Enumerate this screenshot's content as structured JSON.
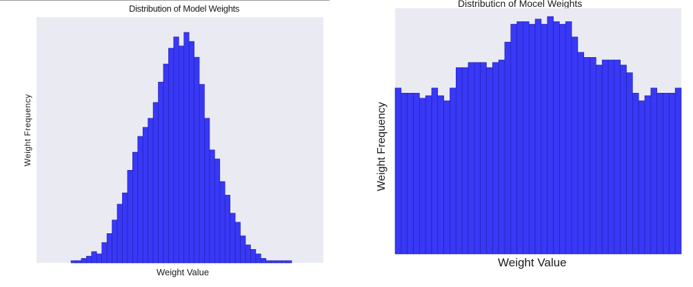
{
  "colors": {
    "bar_fill": "#3838f5",
    "bar_edge": "#1f1fb0",
    "plot_background": "#eaeaf2",
    "page_background": "#ffffff"
  },
  "chart_data": [
    {
      "type": "bar",
      "title": "Distribution of Model Weights",
      "xlabel": "Weight Value",
      "ylabel": "Weight Frequency",
      "grid": false,
      "legend": "none",
      "ticks_shown": false,
      "note": "relative bar heights (0-100) read from image; axes carry no tick labels",
      "values": [
        1,
        1,
        2,
        3,
        5,
        4,
        9,
        13,
        19,
        26,
        31,
        41,
        49,
        56,
        60,
        64,
        71,
        80,
        88,
        95,
        100,
        96,
        102,
        98,
        91,
        79,
        64,
        50,
        46,
        36,
        30,
        22,
        18,
        12,
        8,
        6,
        4,
        2,
        1,
        1,
        1,
        1,
        1
      ]
    },
    {
      "type": "bar",
      "title": "Distributicn of Mocel Weights",
      "xlabel": "Weight Value",
      "ylabel": "Weight Frequency",
      "grid": false,
      "legend": "none",
      "ticks_shown": false,
      "note": "relative bar heights (0-100) read from image; axes carry no tick labels",
      "values": [
        65,
        63,
        63,
        63,
        61,
        62,
        65,
        62,
        60,
        65,
        73,
        73,
        75,
        75,
        75,
        73,
        75,
        76,
        83,
        90,
        91,
        91,
        90,
        92,
        90,
        93,
        91,
        90,
        91,
        85,
        79,
        77,
        77,
        74,
        76,
        76,
        76,
        74,
        71,
        63,
        60,
        62,
        65,
        63,
        63,
        63,
        65
      ]
    }
  ]
}
